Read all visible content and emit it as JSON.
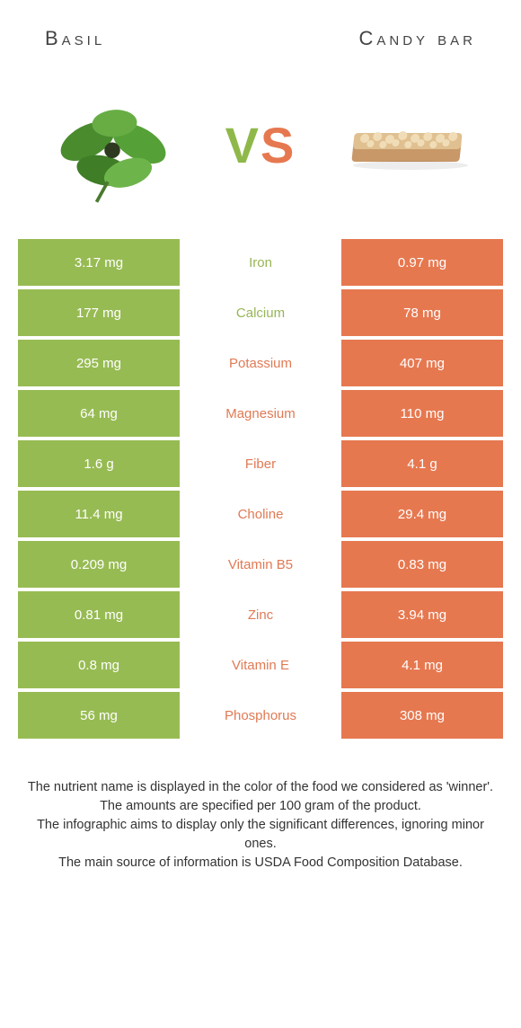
{
  "colors": {
    "left": "#97bb53",
    "right": "#e67850",
    "leftMid": "#98b557",
    "rightMid": "#e07a54",
    "bg": "#ffffff"
  },
  "header": {
    "leftTitle": "Basil",
    "rightTitle": "Candy bar",
    "vs_v": "V",
    "vs_s": "S"
  },
  "rows": [
    {
      "left": "3.17 mg",
      "label": "Iron",
      "right": "0.97 mg",
      "winner": "left"
    },
    {
      "left": "177 mg",
      "label": "Calcium",
      "right": "78 mg",
      "winner": "left"
    },
    {
      "left": "295 mg",
      "label": "Potassium",
      "right": "407 mg",
      "winner": "right"
    },
    {
      "left": "64 mg",
      "label": "Magnesium",
      "right": "110 mg",
      "winner": "right"
    },
    {
      "left": "1.6 g",
      "label": "Fiber",
      "right": "4.1 g",
      "winner": "right"
    },
    {
      "left": "11.4 mg",
      "label": "Choline",
      "right": "29.4 mg",
      "winner": "right"
    },
    {
      "left": "0.209 mg",
      "label": "Vitamin B5",
      "right": "0.83 mg",
      "winner": "right"
    },
    {
      "left": "0.81 mg",
      "label": "Zinc",
      "right": "3.94 mg",
      "winner": "right"
    },
    {
      "left": "0.8 mg",
      "label": "Vitamin E",
      "right": "4.1 mg",
      "winner": "right"
    },
    {
      "left": "56 mg",
      "label": "Phosphorus",
      "right": "308 mg",
      "winner": "right"
    }
  ],
  "footer": {
    "l1": "The nutrient name is displayed in the color of the food we considered as 'winner'.",
    "l2": "The amounts are specified per 100 gram of the product.",
    "l3": "The infographic aims to display only the significant differences, ignoring minor ones.",
    "l4": "The main source of information is USDA Food Composition Database."
  }
}
